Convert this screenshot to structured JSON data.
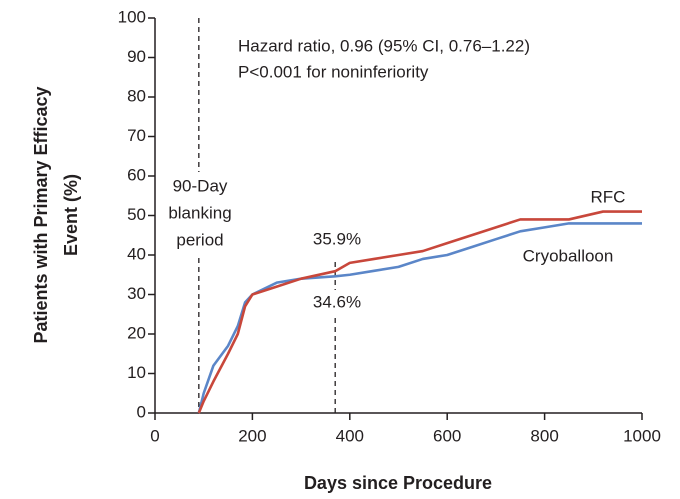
{
  "chart_data": {
    "type": "line",
    "ylabel": [
      "Patients with Primary Efficacy",
      "Event (%)"
    ],
    "xlabel": "Days since Procedure",
    "annotations": [
      "Hazard ratio, 0.96 (95% CI, 0.76–1.22)",
      "P<0.001 for noninferiority"
    ],
    "blanking_label": [
      "90-Day",
      "blanking",
      "period"
    ],
    "point_labels": [
      "35.9%",
      "34.6%"
    ],
    "vlines": [
      90,
      370
    ],
    "x": [
      90,
      100,
      120,
      150,
      170,
      185,
      200,
      250,
      300,
      370,
      400,
      450,
      500,
      550,
      600,
      650,
      700,
      750,
      800,
      850,
      920,
      1000
    ],
    "series": [
      {
        "name": "RFC",
        "color": "#c8473b",
        "values": [
          0,
          3,
          8,
          15,
          20,
          27,
          30,
          32,
          34,
          35.9,
          38,
          39,
          40,
          41,
          43,
          45,
          47,
          49,
          49,
          49,
          51,
          51
        ]
      },
      {
        "name": "Cryoballoon",
        "color": "#5b86c8",
        "values": [
          0,
          5,
          12,
          17,
          22,
          28,
          30,
          33,
          34,
          34.6,
          35,
          36,
          37,
          39,
          40,
          42,
          44,
          46,
          47,
          48,
          48,
          48
        ]
      }
    ],
    "xlim": [
      0,
      1000
    ],
    "xticks": [
      0,
      200,
      400,
      600,
      800,
      1000
    ],
    "ylim": [
      0,
      100
    ],
    "yticks": [
      0,
      10,
      20,
      30,
      40,
      50,
      60,
      70,
      80,
      90,
      100
    ]
  }
}
